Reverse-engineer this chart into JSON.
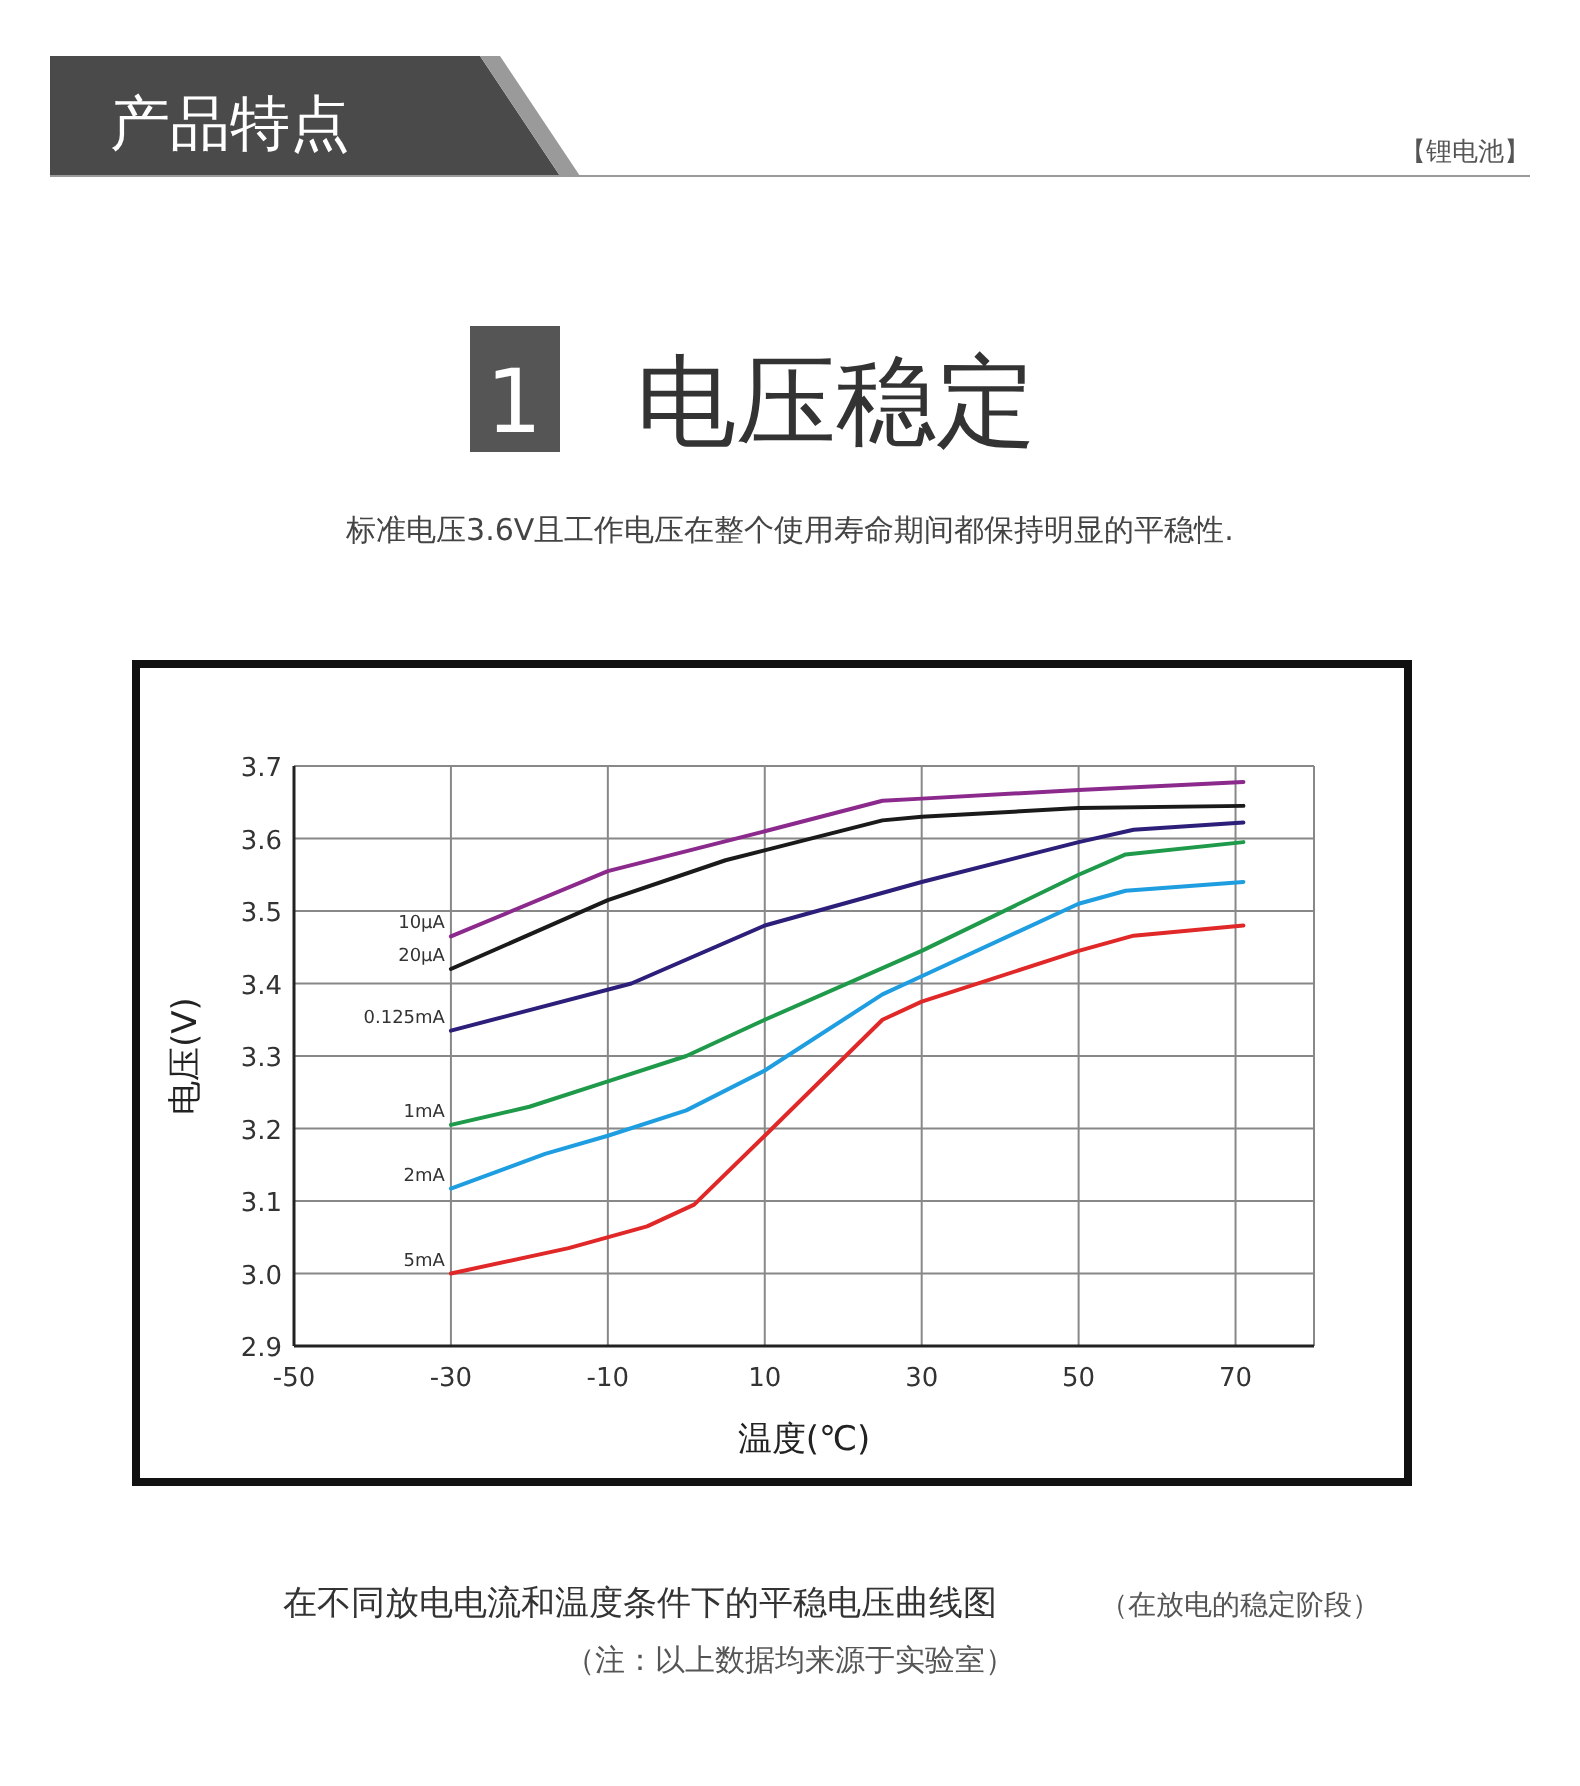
{
  "chart_data": {
    "type": "line",
    "title": "电压稳定",
    "subtitle": "标准电压3.6V且工作电压在整个使用寿命期间都保持明显的平稳性.",
    "xlabel": "温度(℃)",
    "ylabel": "电压(V)",
    "xlim": [
      -50,
      80
    ],
    "xticks": [
      -50,
      -30,
      -10,
      10,
      30,
      50,
      70
    ],
    "ylim": [
      2.9,
      3.7
    ],
    "yticks": [
      {
        "value": 2.9,
        "label": "2.9"
      },
      {
        "value": 3,
        "label": "3.0"
      },
      {
        "value": 3.1,
        "label": "3.1"
      },
      {
        "value": 3.2,
        "label": "3.2"
      },
      {
        "value": 3.3,
        "label": "3.3"
      },
      {
        "value": 3.4,
        "label": "3.4"
      },
      {
        "value": 3.5,
        "label": "3.5"
      },
      {
        "value": 3.6,
        "label": "3.6"
      },
      {
        "value": 3.7,
        "label": "3.7"
      }
    ],
    "grid": true,
    "legend": false,
    "series": [
      {
        "name": "10μA",
        "color": "#8b2a8c",
        "x": [
          -30,
          -10,
          10,
          25,
          30,
          50,
          71
        ],
        "values": [
          3.465,
          3.555,
          3.61,
          3.652,
          3.655,
          3.667,
          3.678
        ]
      },
      {
        "name": "20μA",
        "color": "#1a1a1a",
        "x": [
          -30,
          -10,
          5,
          25,
          30,
          50,
          71
        ],
        "values": [
          3.42,
          3.515,
          3.57,
          3.625,
          3.63,
          3.642,
          3.645
        ]
      },
      {
        "name": "0.125mA",
        "color": "#2b1f7a",
        "x": [
          -30,
          -7,
          10,
          30,
          50,
          57,
          71
        ],
        "values": [
          3.335,
          3.4,
          3.48,
          3.54,
          3.595,
          3.612,
          3.622
        ]
      },
      {
        "name": "1mA",
        "color": "#1e9a4a",
        "x": [
          -30,
          -20,
          -10,
          0,
          10,
          30,
          50,
          56,
          71
        ],
        "values": [
          3.205,
          3.23,
          3.265,
          3.3,
          3.35,
          3.445,
          3.55,
          3.578,
          3.595
        ]
      },
      {
        "name": "2mA",
        "color": "#1e9ee0",
        "x": [
          -30,
          -18,
          -10,
          0,
          10,
          25,
          30,
          50,
          56,
          71
        ],
        "values": [
          3.117,
          3.165,
          3.19,
          3.225,
          3.28,
          3.385,
          3.41,
          3.51,
          3.528,
          3.54
        ]
      },
      {
        "name": "5mA",
        "color": "#e02828",
        "x": [
          -30,
          -15,
          -5,
          1,
          10,
          25,
          30,
          50,
          57,
          71
        ],
        "values": [
          3.0,
          3.035,
          3.065,
          3.095,
          3.19,
          3.35,
          3.375,
          3.445,
          3.466,
          3.48
        ]
      }
    ],
    "annotations": [
      "产品特点",
      "【锂电池】",
      "1",
      "在不同放电电流和温度条件下的平稳电压曲线图",
      "（在放电的稳定阶段）",
      "（注：以上数据均来源于实验室）"
    ]
  }
}
